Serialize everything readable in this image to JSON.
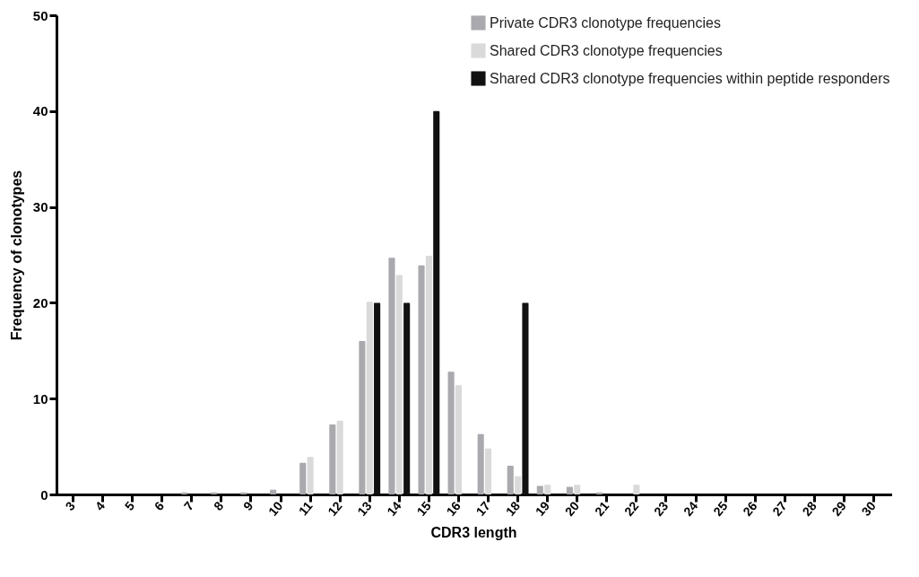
{
  "chart_data": {
    "type": "bar",
    "xlabel": "CDR3 length",
    "ylabel": "Frequency of clonotypes",
    "categories": [
      "3",
      "4",
      "5",
      "6",
      "7",
      "8",
      "9",
      "10",
      "11",
      "12",
      "13",
      "14",
      "15",
      "16",
      "17",
      "18",
      "19",
      "20",
      "21",
      "22",
      "23",
      "24",
      "25",
      "26",
      "27",
      "28",
      "29",
      "30"
    ],
    "series": [
      {
        "name": "Private CDR3 clonotype frequencies",
        "color": "#a9a9ae",
        "values": [
          0,
          0,
          0,
          0,
          0.2,
          0.2,
          0.2,
          0.5,
          3.3,
          7.3,
          16,
          24.7,
          23.9,
          12.8,
          6.3,
          3,
          0.9,
          0.8,
          0.2,
          0,
          0,
          0,
          0,
          0,
          0,
          0,
          0,
          0
        ]
      },
      {
        "name": "Shared CDR3 clonotype frequencies",
        "color": "#dadada",
        "values": [
          0,
          0,
          0,
          0,
          0,
          0,
          0,
          0,
          3.9,
          7.7,
          20.1,
          22.9,
          24.9,
          11.4,
          4.8,
          1.9,
          1,
          1,
          0,
          1,
          0,
          0,
          0,
          0,
          0,
          0,
          0,
          0
        ]
      },
      {
        "name": "Shared CDR3 clonotype frequencies within peptide responders",
        "color": "#111111",
        "values": [
          0,
          0,
          0,
          0,
          0,
          0,
          0,
          0,
          0,
          0,
          20,
          20,
          40,
          0,
          0,
          20,
          0,
          0,
          0,
          0,
          0,
          0,
          0,
          0,
          0,
          0,
          0,
          0
        ]
      }
    ],
    "ylim": [
      0,
      50
    ],
    "yticks": [
      0,
      10,
      20,
      30,
      40,
      50
    ],
    "legend": "top right"
  }
}
